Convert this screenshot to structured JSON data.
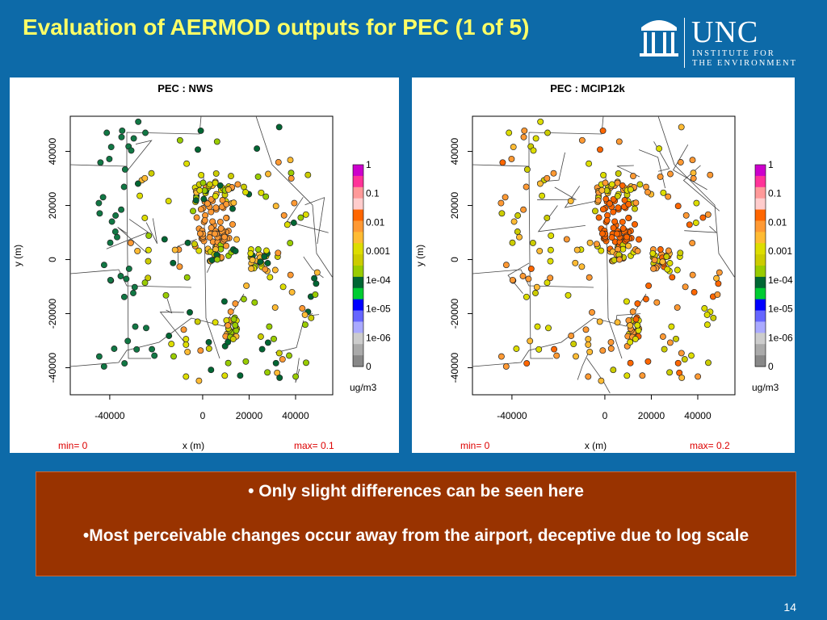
{
  "slide": {
    "title": "Evaluation of AERMOD outputs for PEC (1 of 5)",
    "page_number": "14",
    "logo": {
      "name": "UNC",
      "line1": "INSTITUTE FOR",
      "line2": "THE ENVIRONMENT"
    },
    "notes": [
      "• Only slight differences can be seen here",
      "•Most perceivable changes occur away from the airport, deceptive due to log scale"
    ],
    "colors": {
      "background": "#0d6aa8",
      "title": "#ffff66",
      "note_box": "#993300",
      "minmax": "#dd0000"
    }
  },
  "chart_data": [
    {
      "type": "scatter",
      "title": "PEC : NWS",
      "xlabel": "x (m)",
      "ylabel": "y (m)",
      "xticks": [
        -40000,
        0,
        20000,
        40000
      ],
      "yticks": [
        -40000,
        -20000,
        0,
        20000,
        40000
      ],
      "xlim": [
        -57000,
        56000
      ],
      "ylim": [
        -50000,
        53000
      ],
      "min_label": "min= 0",
      "max_label": "max= 0.1",
      "colorbar": {
        "labels": [
          "1",
          "0.1",
          "0.01",
          "0.001",
          "1e-04",
          "1e-05",
          "1e-06",
          "0"
        ],
        "unit": "ug/m3",
        "colors": [
          "#cc00cc",
          "#ff3399",
          "#ff9999",
          "#ffcccc",
          "#ff6600",
          "#ff9933",
          "#ffbb33",
          "#dddd00",
          "#cccc00",
          "#99cc00",
          "#006633",
          "#00cc33",
          "#0000ff",
          "#6666ff",
          "#aaaaff",
          "#cccccc",
          "#aaaaaa",
          "#888888"
        ]
      },
      "scale": "log",
      "note": "Receptor points around an airport in southern New England; densest cluster near x=0, y=15000"
    },
    {
      "type": "scatter",
      "title": "PEC : MCIP12k",
      "xlabel": "x (m)",
      "ylabel": "y (m)",
      "xticks": [
        -40000,
        0,
        20000,
        40000
      ],
      "yticks": [
        -40000,
        -20000,
        0,
        20000,
        40000
      ],
      "xlim": [
        -57000,
        56000
      ],
      "ylim": [
        -50000,
        53000
      ],
      "min_label": "min= 0",
      "max_label": "max= 0.2",
      "colorbar": {
        "labels": [
          "1",
          "0.1",
          "0.01",
          "0.001",
          "1e-04",
          "1e-05",
          "1e-06",
          "0"
        ],
        "unit": "ug/m3",
        "colors": [
          "#cc00cc",
          "#ff3399",
          "#ff9999",
          "#ffcccc",
          "#ff6600",
          "#ff9933",
          "#ffbb33",
          "#dddd00",
          "#cccc00",
          "#99cc00",
          "#006633",
          "#00cc33",
          "#0000ff",
          "#6666ff",
          "#aaaaff",
          "#cccccc",
          "#aaaaaa",
          "#888888"
        ]
      },
      "scale": "log"
    }
  ]
}
